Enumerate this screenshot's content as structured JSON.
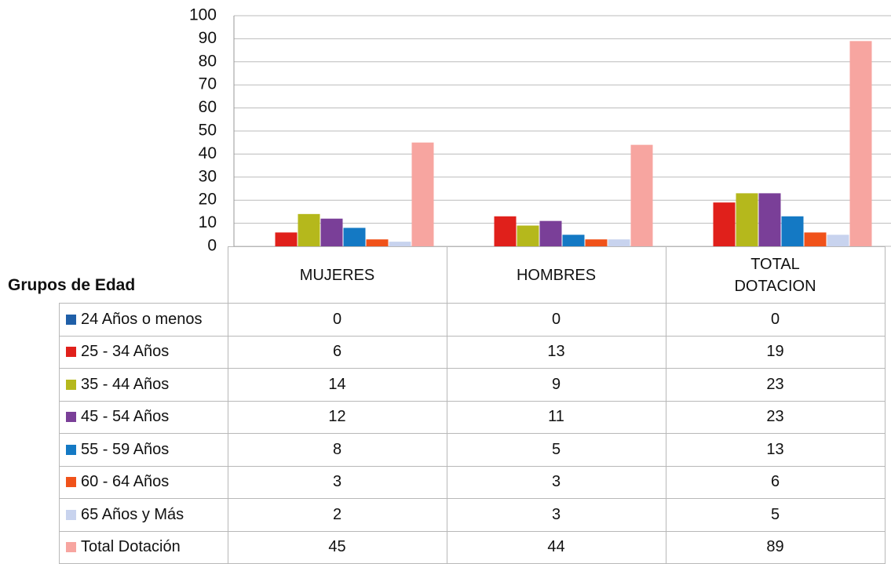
{
  "chart_data": {
    "type": "bar",
    "table_header": "Grupos de Edad",
    "categories": [
      "MUJERES",
      "HOMBRES",
      "TOTAL DOTACION"
    ],
    "series": [
      {
        "name": "24 Años o menos",
        "color": "#1f5fa8",
        "values": [
          0,
          0,
          0
        ]
      },
      {
        "name": "25 - 34 Años",
        "color": "#e0201b",
        "values": [
          6,
          13,
          19
        ]
      },
      {
        "name": "35 - 44 Años",
        "color": "#b5b81c",
        "values": [
          14,
          9,
          23
        ]
      },
      {
        "name": "45 - 54 Años",
        "color": "#7a3f98",
        "values": [
          12,
          11,
          23
        ]
      },
      {
        "name": "55 - 59 Años",
        "color": "#1479c4",
        "values": [
          8,
          5,
          13
        ]
      },
      {
        "name": "60 - 64 Años",
        "color": "#f0521a",
        "values": [
          3,
          3,
          6
        ]
      },
      {
        "name": "65 Años y Más",
        "color": "#c8d3ee",
        "values": [
          2,
          3,
          5
        ]
      },
      {
        "name": "Total Dotación",
        "color": "#f7a5a0",
        "values": [
          45,
          44,
          89
        ]
      }
    ],
    "ylim": [
      0,
      100
    ],
    "yticks": [
      0,
      10,
      20,
      30,
      40,
      50,
      60,
      70,
      80,
      90,
      100
    ],
    "grid": true
  }
}
